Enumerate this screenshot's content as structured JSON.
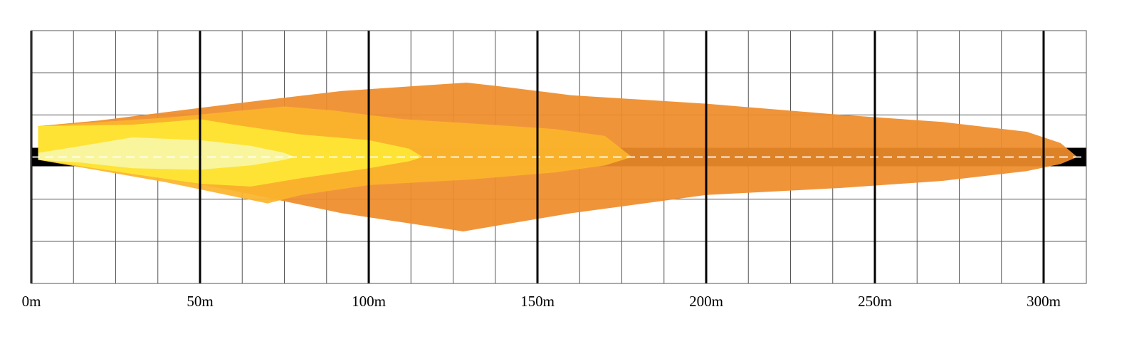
{
  "chart_data": {
    "type": "area",
    "title": "",
    "xlabel": "",
    "ylabel": "",
    "x_unit": "m",
    "xlim": [
      0,
      312
    ],
    "x_ticks": [
      0,
      50,
      100,
      150,
      200,
      250,
      300
    ],
    "x_tick_labels": [
      "0m",
      "50m",
      "100m",
      "150m",
      "200m",
      "250m",
      "300m"
    ],
    "minor_grid_step": 12.5,
    "y_lines": 6,
    "grid": true,
    "centerline": "dashed",
    "zones": [
      {
        "color": "#EF8C2B",
        "reach": 310,
        "upper": [
          [
            2,
            2.2
          ],
          [
            20,
            2.6
          ],
          [
            60,
            3.8
          ],
          [
            92,
            4.7
          ],
          [
            129,
            5.3
          ],
          [
            140,
            5.0
          ],
          [
            160,
            4.4
          ],
          [
            200,
            3.8
          ],
          [
            240,
            3.0
          ],
          [
            270,
            2.5
          ],
          [
            295,
            1.8
          ],
          [
            305,
            1.0
          ],
          [
            310,
            0
          ]
        ],
        "lower": [
          [
            2,
            -0.2
          ],
          [
            20,
            -0.6
          ],
          [
            60,
            -2.4
          ],
          [
            92,
            -4.0
          ],
          [
            128,
            -5.3
          ],
          [
            140,
            -4.8
          ],
          [
            160,
            -4.0
          ],
          [
            200,
            -2.7
          ],
          [
            240,
            -2.2
          ],
          [
            270,
            -1.7
          ],
          [
            295,
            -1.0
          ],
          [
            305,
            -0.5
          ],
          [
            310,
            0
          ]
        ]
      },
      {
        "color": "#FBB52C",
        "reach": 178,
        "upper": [
          [
            2,
            2.2
          ],
          [
            40,
            2.8
          ],
          [
            75,
            3.6
          ],
          [
            90,
            3.3
          ],
          [
            110,
            2.7
          ],
          [
            130,
            2.4
          ],
          [
            155,
            2.0
          ],
          [
            170,
            1.5
          ],
          [
            178,
            0
          ]
        ],
        "lower": [
          [
            2,
            -0.2
          ],
          [
            40,
            -1.8
          ],
          [
            70,
            -3.3
          ],
          [
            80,
            -2.7
          ],
          [
            100,
            -2.0
          ],
          [
            130,
            -1.6
          ],
          [
            155,
            -1.1
          ],
          [
            170,
            -0.6
          ],
          [
            178,
            0
          ]
        ]
      },
      {
        "color": "#FFE635",
        "reach": 116,
        "upper": [
          [
            2,
            2.2
          ],
          [
            30,
            2.3
          ],
          [
            50,
            2.7
          ],
          [
            60,
            2.3
          ],
          [
            80,
            1.6
          ],
          [
            100,
            1.2
          ],
          [
            112,
            0.6
          ],
          [
            116,
            0
          ]
        ],
        "lower": [
          [
            2,
            -0.2
          ],
          [
            30,
            -1.2
          ],
          [
            50,
            -1.9
          ],
          [
            65,
            -2.1
          ],
          [
            80,
            -1.5
          ],
          [
            100,
            -0.8
          ],
          [
            112,
            -0.3
          ],
          [
            116,
            0
          ]
        ]
      },
      {
        "color": "#F8F6A6",
        "reach": 78,
        "upper": [
          [
            2,
            0.3
          ],
          [
            15,
            0.8
          ],
          [
            30,
            1.4
          ],
          [
            50,
            1.2
          ],
          [
            65,
            0.8
          ],
          [
            75,
            0.3
          ],
          [
            78,
            0
          ]
        ],
        "lower": [
          [
            2,
            -0.2
          ],
          [
            15,
            -0.4
          ],
          [
            30,
            -0.8
          ],
          [
            50,
            -0.9
          ],
          [
            65,
            -0.6
          ],
          [
            75,
            -0.2
          ],
          [
            78,
            0
          ]
        ]
      }
    ]
  },
  "colors": {
    "grid": "#555555",
    "major_grid": "#000000",
    "center_band": "#000000",
    "dash": "#ffffff"
  }
}
